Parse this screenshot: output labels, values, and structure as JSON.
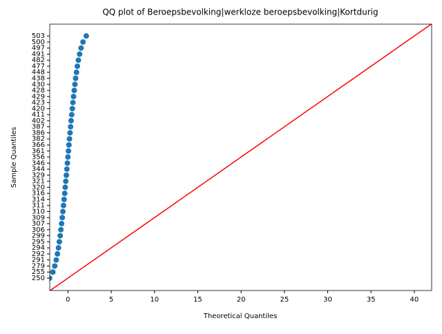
{
  "chart_data": {
    "type": "scatter",
    "title": "QQ plot of Beroepsbevolking|werkloze beroepsbevolking|Kortdurig",
    "x_label": "Theoretical Quantiles",
    "y_label": "Sample Quantiles",
    "color": "#1f77b4",
    "line_color": "#ff0000",
    "x": [
      -2.12,
      -1.74,
      -1.52,
      -1.35,
      -1.21,
      -1.09,
      -0.99,
      -0.89,
      -0.81,
      -0.73,
      -0.65,
      -0.58,
      -0.51,
      -0.44,
      -0.37,
      -0.31,
      -0.25,
      -0.18,
      -0.12,
      -0.06,
      0,
      0.06,
      0.12,
      0.18,
      0.25,
      0.31,
      0.37,
      0.44,
      0.51,
      0.58,
      0.65,
      0.73,
      0.81,
      0.89,
      0.99,
      1.09,
      1.21,
      1.35,
      1.52,
      1.74,
      2.12
    ],
    "y": [
      250,
      255,
      279,
      291,
      292,
      294,
      295,
      299,
      306,
      307,
      309,
      310,
      311,
      314,
      316,
      320,
      321,
      329,
      344,
      346,
      356,
      361,
      366,
      382,
      386,
      387,
      402,
      411,
      420,
      423,
      429,
      428,
      430,
      438,
      448,
      477,
      482,
      491,
      497,
      500,
      503
    ],
    "xlim": [
      -2.1,
      42
    ],
    "xticks": [
      0,
      5,
      10,
      15,
      20,
      25,
      30,
      35,
      40
    ],
    "ylim": [
      -2.05,
      41.95
    ]
  }
}
